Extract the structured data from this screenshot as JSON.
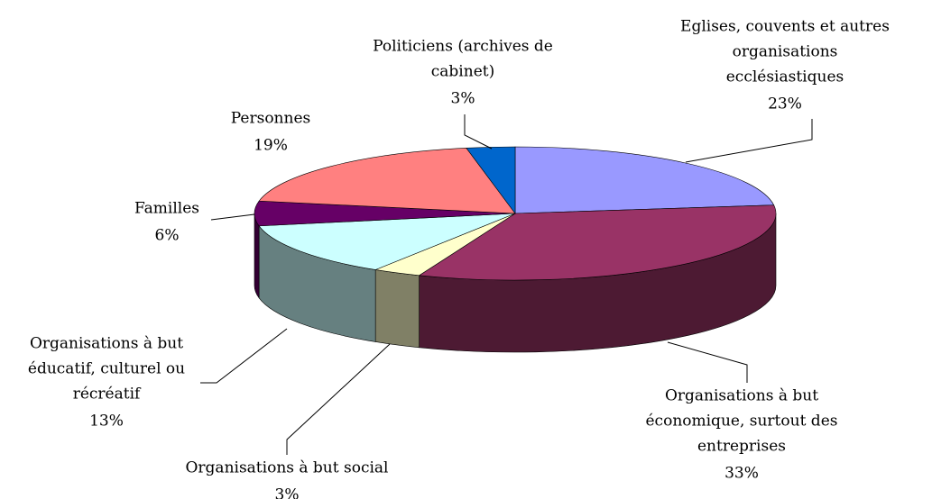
{
  "chart_data": {
    "type": "pie",
    "categories": [
      [
        "Eglises, couvents et autres",
        "organisations",
        "ecclésiastiques"
      ],
      [
        "Organisations à but",
        "économique, surtout des",
        "entreprises"
      ],
      [
        "Organisations à but social"
      ],
      [
        "Organisations à but",
        "éducatif, culturel ou",
        "récréatif"
      ],
      [
        "Familles"
      ],
      [
        "Personnes"
      ],
      [
        "Politiciens (archives de",
        "cabinet)"
      ]
    ],
    "values": [
      23,
      33,
      3,
      13,
      6,
      19,
      3
    ],
    "value_labels": [
      "23%",
      "33%",
      "3%",
      "13%",
      "6%",
      "19%",
      "3%"
    ],
    "colors": [
      "#9999ff",
      "#993366",
      "#ffffcc",
      "#ccffff",
      "#660066",
      "#ff8080",
      "#0066cc"
    ]
  }
}
